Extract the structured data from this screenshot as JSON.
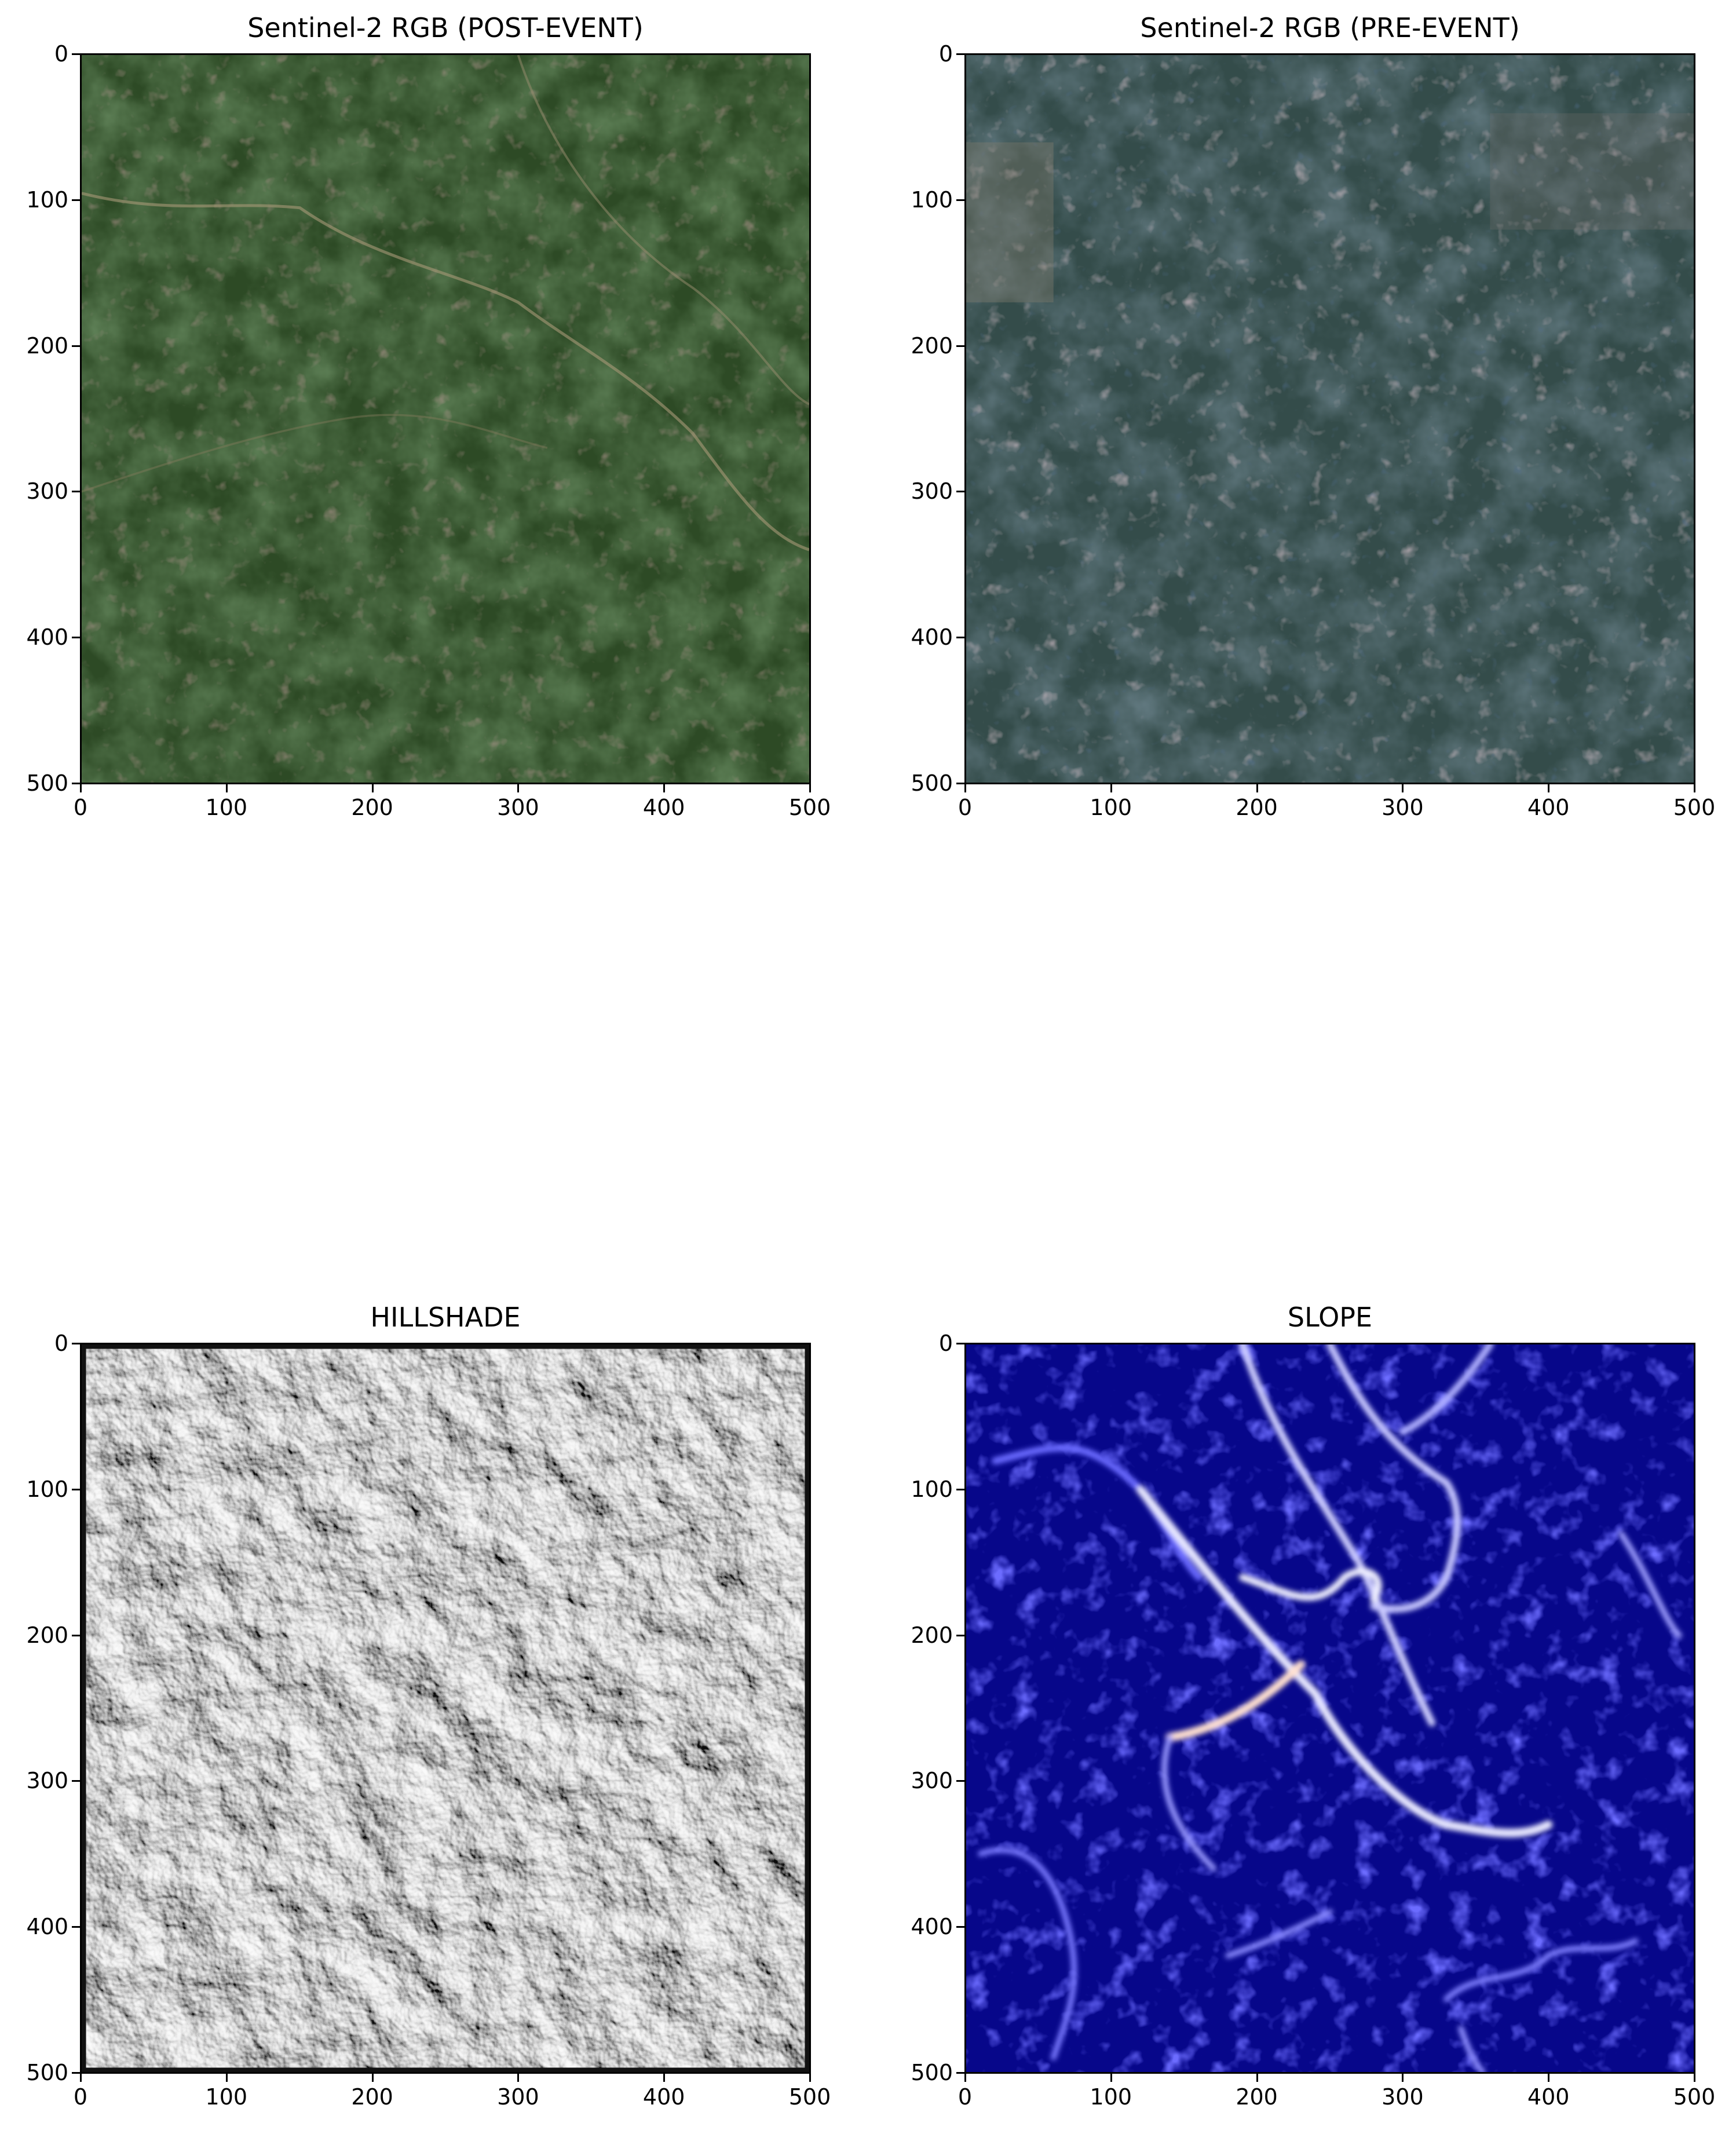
{
  "panels": [
    {
      "title": "Sentinel-2 RGB (POST-EVENT)",
      "kind": "post-event-rgb",
      "colors": {
        "base": "#2d4a25",
        "dark": "#1d3a17",
        "mid": "#3a5530",
        "accent": "#6a4a44",
        "light": "#b8a88a"
      }
    },
    {
      "title": "Sentinel-2 RGB (PRE-EVENT)",
      "kind": "pre-event-rgb",
      "colors": {
        "base": "#344c4a",
        "dark": "#1e3040",
        "mid": "#3f5656",
        "accent": "#8a7a88",
        "light": "#c8b0a0"
      }
    },
    {
      "title": "HILLSHADE",
      "kind": "hillshade",
      "colors": {
        "base": "#cfcfcf",
        "dark": "#6a6a6a",
        "mid": "#b5b5b5",
        "accent": "#8a8a8a",
        "light": "#f2f2f2"
      }
    },
    {
      "title": "SLOPE",
      "kind": "slope",
      "colors": {
        "base": "#07078a",
        "dark": "#02023a",
        "mid": "#1a1ad0",
        "accent": "#4a4aff",
        "light": "#ffffff"
      }
    }
  ],
  "axes": {
    "x_ticks": [
      "0",
      "100",
      "200",
      "300",
      "400",
      "500"
    ],
    "y_ticks": [
      "0",
      "100",
      "200",
      "300",
      "400",
      "500"
    ]
  }
}
